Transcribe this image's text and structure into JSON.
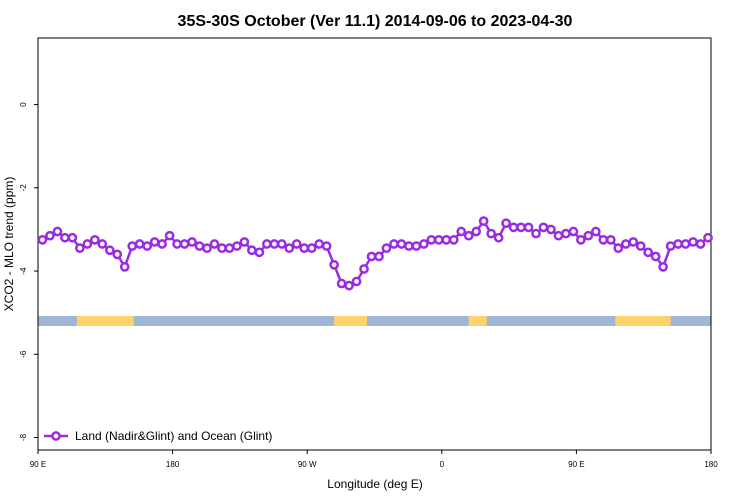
{
  "chart_data": {
    "type": "line",
    "title": "35S-30S October (Ver 11.1)   2014-09-06 to 2023-04-30",
    "xlabel": "Longitude (deg E)",
    "ylabel": "XCO2 - MLO trend (ppm)",
    "x_ticks": [
      {
        "value": 90,
        "label": "90 E"
      },
      {
        "value": 180,
        "label": "180"
      },
      {
        "value": 270,
        "label": "90 W"
      },
      {
        "value": 360,
        "label": "0"
      },
      {
        "value": 450,
        "label": "90 E"
      },
      {
        "value": 540,
        "label": "180"
      }
    ],
    "y_ticks": [
      {
        "value": 0,
        "label": "0"
      },
      {
        "value": -2,
        "label": "-2"
      },
      {
        "value": -4,
        "label": "-4"
      },
      {
        "value": -6,
        "label": "-6"
      },
      {
        "value": -8,
        "label": "-8"
      }
    ],
    "xlim": [
      90,
      540
    ],
    "ylim": [
      -8.3,
      1.6
    ],
    "legend_position": "bottom-left",
    "series": [
      {
        "name": "Land (Nadir&Glint) and Ocean (Glint)",
        "color": "#9b2ae3",
        "x": [
          93,
          98,
          103,
          108,
          113,
          118,
          123,
          128,
          133,
          138,
          143,
          148,
          153,
          158,
          163,
          168,
          173,
          178,
          183,
          188,
          193,
          198,
          203,
          208,
          213,
          218,
          223,
          228,
          233,
          238,
          243,
          248,
          253,
          258,
          263,
          268,
          273,
          278,
          283,
          288,
          293,
          298,
          303,
          308,
          313,
          318,
          323,
          328,
          333,
          338,
          343,
          348,
          353,
          358,
          363,
          368,
          373,
          378,
          383,
          388,
          393,
          398,
          403,
          408,
          413,
          418,
          423,
          428,
          433,
          438,
          443,
          448,
          453,
          458,
          463,
          468,
          473,
          478,
          483,
          488,
          493,
          498,
          503,
          508,
          513,
          518,
          523,
          528,
          533,
          538
        ],
        "y": [
          -3.25,
          -3.15,
          -3.05,
          -3.2,
          -3.2,
          -3.45,
          -3.35,
          -3.25,
          -3.35,
          -3.5,
          -3.6,
          -3.9,
          -3.4,
          -3.35,
          -3.4,
          -3.3,
          -3.35,
          -3.15,
          -3.35,
          -3.35,
          -3.3,
          -3.4,
          -3.45,
          -3.35,
          -3.45,
          -3.45,
          -3.4,
          -3.3,
          -3.5,
          -3.55,
          -3.35,
          -3.35,
          -3.35,
          -3.45,
          -3.35,
          -3.45,
          -3.45,
          -3.35,
          -3.4,
          -3.85,
          -4.3,
          -4.35,
          -4.25,
          -3.95,
          -3.65,
          -3.65,
          -3.45,
          -3.35,
          -3.35,
          -3.4,
          -3.4,
          -3.35,
          -3.25,
          -3.25,
          -3.25,
          -3.25,
          -3.05,
          -3.15,
          -3.05,
          -2.8,
          -3.1,
          -3.2,
          -2.85,
          -2.95,
          -2.95,
          -2.95,
          -3.1,
          -2.95,
          -3.0,
          -3.15,
          -3.1,
          -3.05,
          -3.25,
          -3.15,
          -3.05,
          -3.25,
          -3.25,
          -3.45,
          -3.35,
          -3.3,
          -3.4,
          -3.55,
          -3.65,
          -3.9,
          -3.4,
          -3.35,
          -3.35,
          -3.3,
          -3.35,
          -3.2
        ]
      }
    ],
    "surface_band": {
      "y": -5.2,
      "ocean_color": "#9fb6d7",
      "land_color": "#fcd36a",
      "land_ranges": [
        [
          116,
          154
        ],
        [
          288,
          310
        ],
        [
          378,
          390
        ],
        [
          476,
          513
        ]
      ]
    }
  }
}
